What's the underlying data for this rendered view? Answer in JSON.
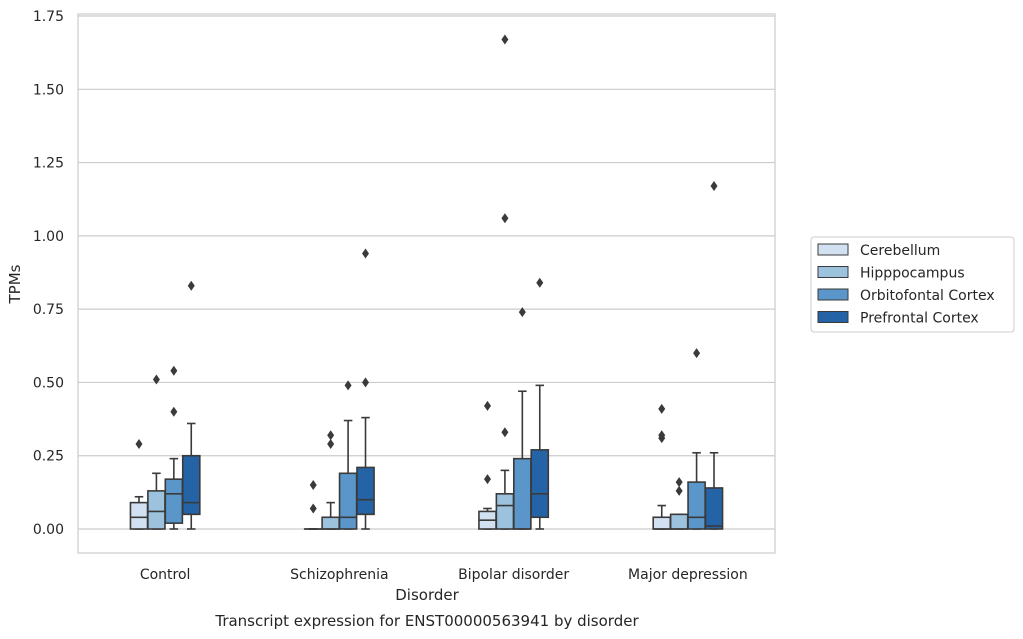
{
  "chart_data": {
    "type": "box",
    "title": "Transcript expression for ENST00000563941 by disorder",
    "xlabel": "Disorder",
    "ylabel": "TPMs",
    "ylim": [
      -0.08,
      1.76
    ],
    "yticks": [
      0.0,
      0.25,
      0.5,
      0.75,
      1.0,
      1.25,
      1.5,
      1.75
    ],
    "ytick_labels": [
      "0.00",
      "0.25",
      "0.50",
      "0.75",
      "1.00",
      "1.25",
      "1.50",
      "1.75"
    ],
    "grid": true,
    "legend_position": "right",
    "categories": [
      "Control",
      "Schizophrenia",
      "Bipolar disorder",
      "Major depression"
    ],
    "series": [
      {
        "name": "Cerebellum",
        "color": "#d1e1f1",
        "boxes": [
          {
            "whisker_low": 0.0,
            "q1": 0.0,
            "median": 0.04,
            "q3": 0.09,
            "whisker_high": 0.11,
            "outliers": [
              0.29
            ]
          },
          {
            "whisker_low": 0.0,
            "q1": 0.0,
            "median": 0.0,
            "q3": 0.0,
            "whisker_high": 0.0,
            "outliers": [
              0.07,
              0.15
            ]
          },
          {
            "whisker_low": 0.0,
            "q1": 0.0,
            "median": 0.03,
            "q3": 0.06,
            "whisker_high": 0.07,
            "outliers": [
              0.17,
              0.42
            ]
          },
          {
            "whisker_low": 0.0,
            "q1": 0.0,
            "median": 0.0,
            "q3": 0.04,
            "whisker_high": 0.08,
            "outliers": [
              0.31,
              0.32,
              0.41
            ]
          }
        ]
      },
      {
        "name": "Hipppocampus",
        "color": "#9dc2de",
        "boxes": [
          {
            "whisker_low": 0.0,
            "q1": 0.0,
            "median": 0.06,
            "q3": 0.13,
            "whisker_high": 0.19,
            "outliers": [
              0.51
            ]
          },
          {
            "whisker_low": 0.0,
            "q1": 0.0,
            "median": 0.0,
            "q3": 0.04,
            "whisker_high": 0.09,
            "outliers": [
              0.29,
              0.32
            ]
          },
          {
            "whisker_low": 0.0,
            "q1": 0.0,
            "median": 0.08,
            "q3": 0.12,
            "whisker_high": 0.2,
            "outliers": [
              0.33,
              1.06,
              1.67
            ]
          },
          {
            "whisker_low": 0.0,
            "q1": 0.0,
            "median": 0.0,
            "q3": 0.05,
            "whisker_high": 0.05,
            "outliers": [
              0.13,
              0.16
            ]
          }
        ]
      },
      {
        "name": "Orbitofontal Cortex",
        "color": "#5a96c9",
        "boxes": [
          {
            "whisker_low": 0.0,
            "q1": 0.02,
            "median": 0.12,
            "q3": 0.17,
            "whisker_high": 0.24,
            "outliers": [
              0.4,
              0.54
            ]
          },
          {
            "whisker_low": 0.0,
            "q1": 0.0,
            "median": 0.04,
            "q3": 0.19,
            "whisker_high": 0.37,
            "outliers": [
              0.49
            ]
          },
          {
            "whisker_low": 0.0,
            "q1": 0.0,
            "median": 0.0,
            "q3": 0.24,
            "whisker_high": 0.47,
            "outliers": [
              0.74
            ]
          },
          {
            "whisker_low": 0.0,
            "q1": 0.0,
            "median": 0.04,
            "q3": 0.16,
            "whisker_high": 0.26,
            "outliers": [
              0.6
            ]
          }
        ]
      },
      {
        "name": "Prefrontal Cortex",
        "color": "#2464a6",
        "boxes": [
          {
            "whisker_low": 0.0,
            "q1": 0.05,
            "median": 0.09,
            "q3": 0.25,
            "whisker_high": 0.36,
            "outliers": [
              0.83
            ]
          },
          {
            "whisker_low": 0.0,
            "q1": 0.05,
            "median": 0.1,
            "q3": 0.21,
            "whisker_high": 0.38,
            "outliers": [
              0.5,
              0.94
            ]
          },
          {
            "whisker_low": 0.0,
            "q1": 0.04,
            "median": 0.12,
            "q3": 0.27,
            "whisker_high": 0.49,
            "outliers": [
              0.84
            ]
          },
          {
            "whisker_low": 0.0,
            "q1": 0.0,
            "median": 0.01,
            "q3": 0.14,
            "whisker_high": 0.26,
            "outliers": [
              1.17
            ]
          }
        ]
      }
    ]
  }
}
